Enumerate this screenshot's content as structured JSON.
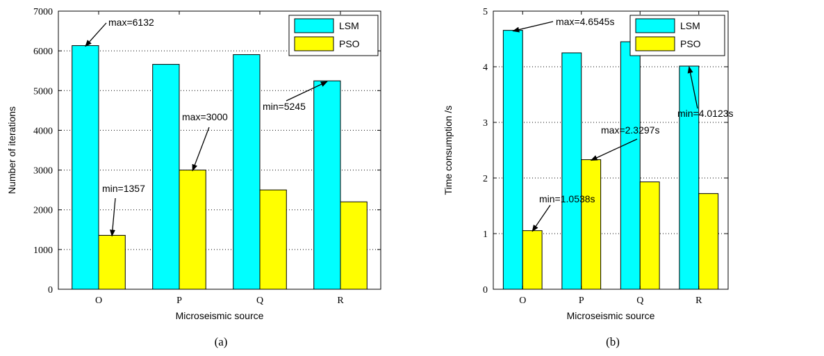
{
  "figures": [
    {
      "caption": "(a)"
    },
    {
      "caption": "(b)"
    }
  ],
  "colors": {
    "LSM": "#00ffff",
    "PSO": "#ffff00"
  },
  "chart_data": [
    {
      "type": "bar",
      "categories": [
        "O",
        "P",
        "Q",
        "R"
      ],
      "series": [
        {
          "name": "LSM",
          "values": [
            6132,
            5660,
            5905,
            5245
          ]
        },
        {
          "name": "PSO",
          "values": [
            1357,
            3000,
            2500,
            2200
          ]
        }
      ],
      "xlabel": "Microseismic source",
      "ylabel": "Number of iterations",
      "ylim": [
        0,
        7000
      ],
      "yticks": [
        "0",
        "1000",
        "2000",
        "3000",
        "4000",
        "5000",
        "6000",
        "7000"
      ],
      "grid": true,
      "legend": "top-right",
      "annotations": [
        {
          "text": "max=6132",
          "series": 0,
          "category": 0
        },
        {
          "text": "min=1357",
          "series": 1,
          "category": 0
        },
        {
          "text": "max=3000",
          "series": 1,
          "category": 1
        },
        {
          "text": "min=5245",
          "series": 0,
          "category": 3
        }
      ]
    },
    {
      "type": "bar",
      "categories": [
        "O",
        "P",
        "Q",
        "R"
      ],
      "series": [
        {
          "name": "LSM",
          "values": [
            4.6545,
            4.25,
            4.45,
            4.0123
          ]
        },
        {
          "name": "PSO",
          "values": [
            1.0538,
            2.3297,
            1.93,
            1.72
          ]
        }
      ],
      "xlabel": "Microseismic source",
      "ylabel": "Time consumption /s",
      "ylim": [
        0,
        5
      ],
      "yticks": [
        "0",
        "1",
        "2",
        "3",
        "4",
        "5"
      ],
      "grid": true,
      "legend": "top-right",
      "annotations": [
        {
          "text": "max=4.6545s",
          "series": 0,
          "category": 0
        },
        {
          "text": "min=1.0538s",
          "series": 1,
          "category": 0
        },
        {
          "text": "max=2.3297s",
          "series": 1,
          "category": 1
        },
        {
          "text": "min=4.0123s",
          "series": 0,
          "category": 3
        }
      ]
    }
  ]
}
